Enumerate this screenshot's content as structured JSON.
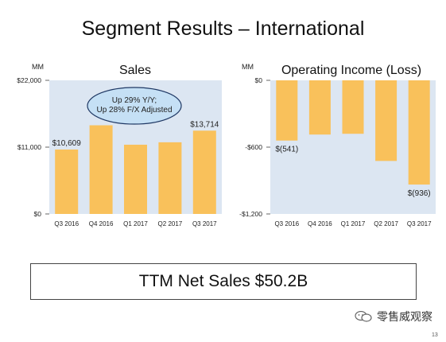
{
  "slide": {
    "title": "Segment Results – International",
    "ttm_label": "TTM Net Sales $50.2B",
    "watermark_text": "零售威观察",
    "watermark_icon": "wechat-icon",
    "page_number": "13"
  },
  "colors": {
    "bar": "#F9C15B",
    "panel": "#DCE6F2",
    "callout_fill": "#C5E0F5",
    "callout_border": "#1F3864"
  },
  "chart_data": [
    {
      "type": "bar",
      "title": "Sales",
      "unit_label": "MM",
      "categories": [
        "Q3 2016",
        "Q4 2016",
        "Q1 2017",
        "Q2 2017",
        "Q3 2017"
      ],
      "values": [
        10609,
        14600,
        11400,
        11800,
        13714
      ],
      "ylim": [
        0,
        22000
      ],
      "yticks": [
        0,
        11000,
        22000
      ],
      "ytick_labels": [
        "$0",
        "$11,000",
        "$22,000"
      ],
      "data_labels": [
        {
          "index": 0,
          "text": "$10,609"
        },
        {
          "index": 4,
          "text": "$13,714"
        }
      ],
      "callout": [
        "Up 29% Y/Y;",
        "Up 28% F/X Adjusted"
      ]
    },
    {
      "type": "bar",
      "title": "Operating Income (Loss)",
      "unit_label": "MM",
      "categories": [
        "Q3 2016",
        "Q4 2016",
        "Q1 2017",
        "Q2 2017",
        "Q3 2017"
      ],
      "values": [
        -541,
        -487,
        -480,
        -724,
        -936
      ],
      "ylim": [
        -1200,
        0
      ],
      "yticks": [
        0,
        -600,
        -1200
      ],
      "ytick_labels": [
        "$0",
        "-$600",
        "-$1,200"
      ],
      "data_labels": [
        {
          "index": 0,
          "text": "$(541)"
        },
        {
          "index": 4,
          "text": "$(936)"
        }
      ]
    }
  ]
}
